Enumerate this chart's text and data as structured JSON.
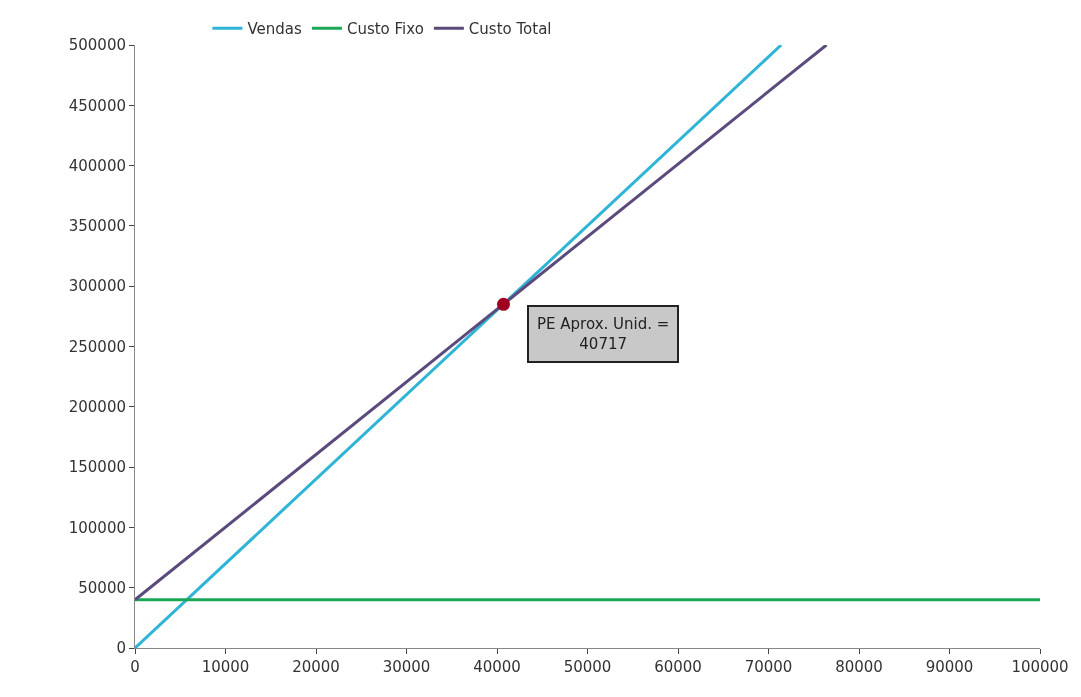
{
  "chart_data": {
    "type": "line",
    "series": [
      {
        "name": "Vendas",
        "color": "#2eb4d6",
        "x": [
          0,
          71400
        ],
        "values": [
          0,
          500000
        ]
      },
      {
        "name": "Custo Fixo",
        "color": "#1aa858",
        "x": [
          0,
          100000
        ],
        "values": [
          40000,
          40000
        ]
      },
      {
        "name": "Custo Total",
        "color": "#5b4a7c",
        "x": [
          0,
          76400
        ],
        "values": [
          40000,
          500000
        ]
      },
      {
        "type": "scatter",
        "marker": "circle",
        "color": "#a00020",
        "x": [
          40717
        ],
        "values": [
          285000
        ]
      }
    ],
    "annotations": [
      {
        "text": "PE Aprox. Unid. =\n40717",
        "x": 40717,
        "y": 285000
      }
    ],
    "xlim": [
      0,
      100000
    ],
    "xticks": [
      0,
      10000,
      20000,
      30000,
      40000,
      50000,
      60000,
      70000,
      80000,
      90000,
      100000
    ],
    "ylim": [
      0,
      500000
    ],
    "yticks": [
      0,
      50000,
      100000,
      150000,
      200000,
      250000,
      300000,
      350000,
      400000,
      450000,
      500000
    ],
    "legend": "top",
    "marker": "none",
    "line_style": "solid"
  }
}
